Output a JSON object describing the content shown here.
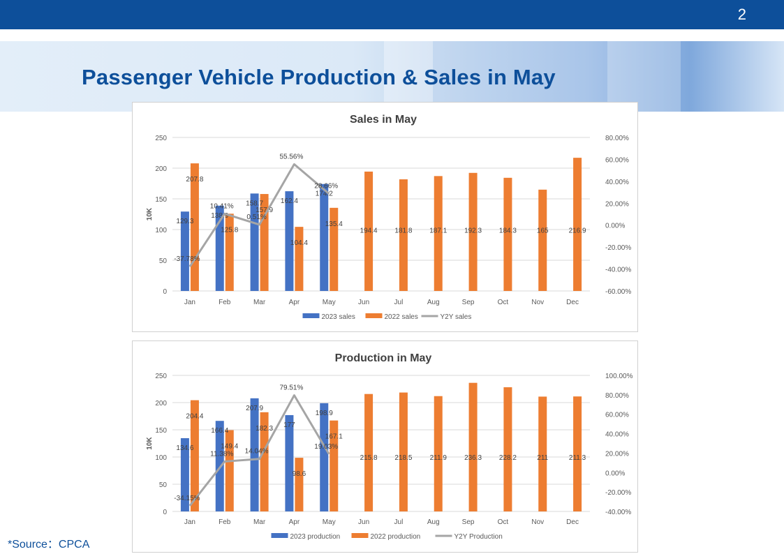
{
  "header": {
    "page_number": "2"
  },
  "page_title": "Passenger Vehicle Production & Sales in May",
  "source": "*Source：CPCA",
  "colors": {
    "bar_2023": "#4472c4",
    "bar_2022": "#ed7d31",
    "line_y2y": "#a5a5a5",
    "title": "#0d4f9a"
  },
  "chart_data": [
    {
      "type": "bar",
      "title": "Sales in May",
      "ylabel": "10K",
      "categories": [
        "Jan",
        "Feb",
        "Mar",
        "Apr",
        "May",
        "Jun",
        "Jul",
        "Aug",
        "Sep",
        "Oct",
        "Nov",
        "Dec"
      ],
      "ylim": [
        0,
        250
      ],
      "yticks": [
        "0",
        "50",
        "100",
        "150",
        "200",
        "250"
      ],
      "y2lim": [
        -60,
        80
      ],
      "y2ticks": [
        "-60.00%",
        "-40.00%",
        "-20.00%",
        "0.00%",
        "20.00%",
        "40.00%",
        "60.00%",
        "80.00%"
      ],
      "series": [
        {
          "name": "2023 sales",
          "kind": "bar",
          "color": "#4472c4",
          "values": [
            129.3,
            138.9,
            158.7,
            162.4,
            174.2,
            null,
            null,
            null,
            null,
            null,
            null,
            null
          ],
          "labels": [
            "129.3",
            "138.9",
            "158.7",
            "162.4",
            "174.2",
            "",
            "",
            "",
            "",
            "",
            "",
            ""
          ]
        },
        {
          "name": "2022 sales",
          "kind": "bar",
          "color": "#ed7d31",
          "values": [
            207.8,
            125.8,
            157.9,
            104.4,
            135.4,
            194.4,
            181.8,
            187.1,
            192.3,
            184.3,
            165,
            216.9
          ],
          "labels": [
            "207.8",
            "125.8",
            "157.9",
            "104.4",
            "135.4",
            "194.4",
            "181.8",
            "187.1",
            "192.3",
            "184.3",
            "165",
            "216.9"
          ]
        },
        {
          "name": "Y2Y sales",
          "kind": "line",
          "color": "#a5a5a5",
          "values": [
            -37.78,
            10.41,
            0.51,
            55.56,
            28.66,
            null,
            null,
            null,
            null,
            null,
            null,
            null
          ],
          "labels": [
            "-37.78%",
            "10.41%",
            "0.51%",
            "55.56%",
            "28.66%",
            "",
            "",
            "",
            "",
            "",
            "",
            ""
          ]
        }
      ],
      "legend": "bottom"
    },
    {
      "type": "bar",
      "title": "Production in May",
      "ylabel": "10K",
      "categories": [
        "Jan",
        "Feb",
        "Mar",
        "Apr",
        "May",
        "Jun",
        "Jul",
        "Aug",
        "Sep",
        "Oct",
        "Nov",
        "Dec"
      ],
      "ylim": [
        0,
        250
      ],
      "yticks": [
        "0",
        "50",
        "100",
        "150",
        "200",
        "250"
      ],
      "y2lim": [
        -40,
        100
      ],
      "y2ticks": [
        "-40.00%",
        "-20.00%",
        "0.00%",
        "20.00%",
        "40.00%",
        "60.00%",
        "80.00%",
        "100.00%"
      ],
      "series": [
        {
          "name": "2023 production",
          "kind": "bar",
          "color": "#4472c4",
          "values": [
            134.6,
            166.4,
            207.9,
            177,
            198.9,
            null,
            null,
            null,
            null,
            null,
            null,
            null
          ],
          "labels": [
            "134.6",
            "166.4",
            "207.9",
            "177",
            "198.9",
            "",
            "",
            "",
            "",
            "",
            "",
            ""
          ]
        },
        {
          "name": "2022 production",
          "kind": "bar",
          "color": "#ed7d31",
          "values": [
            204.4,
            149.4,
            182.3,
            98.6,
            167.1,
            215.8,
            218.5,
            211.9,
            236.3,
            228.2,
            211,
            211.3
          ],
          "labels": [
            "204.4",
            "149.4",
            "182.3",
            "98.6",
            "167.1",
            "215.8",
            "218.5",
            "211.9",
            "236.3",
            "228.2",
            "211",
            "211.3"
          ]
        },
        {
          "name": "Y2Y Production",
          "kind": "line",
          "color": "#a5a5a5",
          "values": [
            -34.15,
            11.38,
            14.04,
            79.51,
            19.03,
            null,
            null,
            null,
            null,
            null,
            null,
            null
          ],
          "labels": [
            "-34.15%",
            "11.38%",
            "14.04%",
            "79.51%",
            "19.03%",
            "",
            "",
            "",
            "",
            "",
            "",
            ""
          ]
        }
      ],
      "legend": "bottom"
    }
  ]
}
